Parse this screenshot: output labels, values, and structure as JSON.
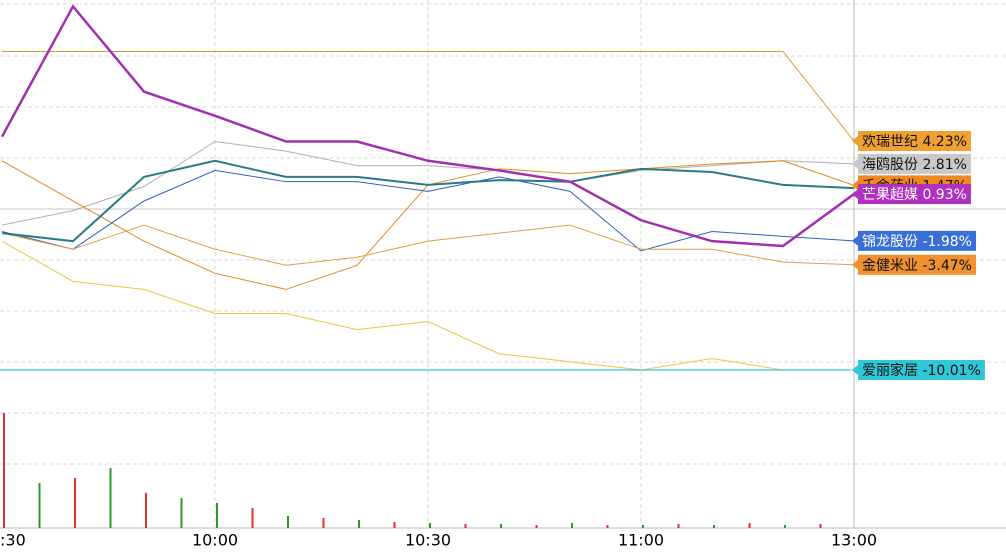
{
  "chart_data": {
    "type": "line",
    "categories": [
      ":30",
      null,
      null,
      "10:00",
      null,
      null,
      "10:30",
      null,
      null,
      "11:00",
      null,
      null,
      "13:00"
    ],
    "ylim": [
      -12.5,
      13
    ],
    "series": [
      {
        "name": "欢瑞世纪",
        "color": "#d89a30",
        "box": "#f0a030",
        "text_color": "#111111",
        "width": 1,
        "values": [
          9.8,
          9.8,
          9.8,
          9.8,
          9.8,
          9.8,
          9.8,
          9.8,
          9.8,
          9.8,
          9.8,
          9.8,
          4.23
        ],
        "value_labels": [
          null,
          null,
          null,
          null,
          null,
          null,
          null,
          null,
          null,
          null,
          null,
          null,
          "4.23%"
        ]
      },
      {
        "name": "海鸥股份",
        "color": "#b0b0b0",
        "box": "#c8c8c8",
        "text_color": "#111111",
        "width": 1,
        "values": [
          -1.0,
          -0.1,
          1.4,
          4.2,
          3.6,
          2.7,
          2.7,
          2.4,
          1.7,
          2.4,
          2.7,
          3.0,
          2.81
        ],
        "value_labels": [
          null,
          null,
          null,
          null,
          null,
          null,
          null,
          null,
          null,
          null,
          null,
          null,
          "2.81%"
        ]
      },
      {
        "name": "千金药业",
        "color": "#e08a20",
        "box": "#f08a20",
        "text_color": "#111111",
        "width": 1,
        "values": [
          3.0,
          0.5,
          -2.0,
          -4.0,
          -5.0,
          -3.5,
          1.5,
          2.5,
          2.2,
          2.5,
          2.8,
          3.0,
          1.47
        ],
        "value_labels": [
          null,
          null,
          null,
          null,
          null,
          null,
          null,
          null,
          null,
          null,
          null,
          null,
          "1.47%"
        ]
      },
      {
        "name": "锦龙股份",
        "color": "#3060c0",
        "box": "#3a6fd8",
        "text_color": "#ffffff",
        "width": 1,
        "values": [
          -1.4,
          -2.5,
          0.5,
          2.4,
          1.7,
          1.7,
          1.1,
          2.0,
          1.1,
          -2.6,
          -1.4,
          -1.7,
          -1.98
        ],
        "value_labels": [
          null,
          null,
          null,
          null,
          null,
          null,
          null,
          null,
          null,
          null,
          null,
          null,
          "-1.98%"
        ]
      },
      {
        "name": "金健米业",
        "color": "#e0a040",
        "box": "#f09030",
        "text_color": "#111111",
        "width": 1,
        "values": [
          -1.5,
          -2.5,
          -1.0,
          -2.5,
          -3.5,
          -3.0,
          -2.0,
          -1.5,
          -1.0,
          -2.5,
          -2.5,
          -3.3,
          -3.47
        ],
        "value_labels": [
          null,
          null,
          null,
          null,
          null,
          null,
          null,
          null,
          null,
          null,
          null,
          null,
          "-3.47%"
        ]
      },
      {
        "name": "爱丽家居",
        "color": "#e8c840",
        "box": "#30c8d8",
        "text_color": "#111111",
        "width": 1,
        "values": [
          -2.0,
          -4.5,
          -5.0,
          -6.5,
          -6.5,
          -7.5,
          -7.0,
          -9.0,
          -9.5,
          -10.01,
          -9.3,
          -10.01,
          -10.01
        ],
        "value_labels": [
          null,
          null,
          null,
          null,
          null,
          null,
          null,
          null,
          null,
          null,
          null,
          null,
          "-10.01%"
        ]
      },
      {
        "color": "#2a7a8a",
        "width": 2,
        "values": [
          -1.5,
          -2.0,
          2.0,
          3.0,
          2.0,
          2.0,
          1.5,
          1.8,
          1.7,
          2.5,
          2.3,
          1.5,
          1.3
        ]
      },
      {
        "name": "芒果超媒",
        "color": "#a030b0",
        "box": "#b030c0",
        "text_color": "#ffffff",
        "width": 2.5,
        "values": [
          4.5,
          12.6,
          7.3,
          5.8,
          4.2,
          4.2,
          3.0,
          2.4,
          1.7,
          -0.7,
          -2.0,
          -2.3,
          0.93
        ],
        "value_labels": [
          null,
          null,
          null,
          null,
          null,
          null,
          null,
          null,
          null,
          null,
          null,
          null,
          "0.93%"
        ]
      }
    ],
    "volume": {
      "ylim": [
        0,
        120
      ],
      "values": [
        115,
        45,
        50,
        60,
        35,
        30,
        25,
        20,
        12,
        10,
        8,
        6,
        5,
        4,
        4,
        3,
        5,
        3,
        3,
        4,
        3,
        5,
        3,
        4
      ],
      "colors": [
        "#e03030",
        "#2a9a2a",
        "#e03030",
        "#2a9a2a",
        "#e03030",
        "#2a9a2a",
        "#2a9a2a",
        "#e03030",
        "#2a9a2a",
        "#e03030",
        "#2a9a2a",
        "#e03030",
        "#2a9a2a",
        "#e03030",
        "#2a9a2a",
        "#e03030",
        "#2a9a2a",
        "#e03030",
        "#2a9a2a",
        "#e03030",
        "#2a9a2a",
        "#e03030",
        "#2a9a2a",
        "#e03030"
      ]
    }
  }
}
